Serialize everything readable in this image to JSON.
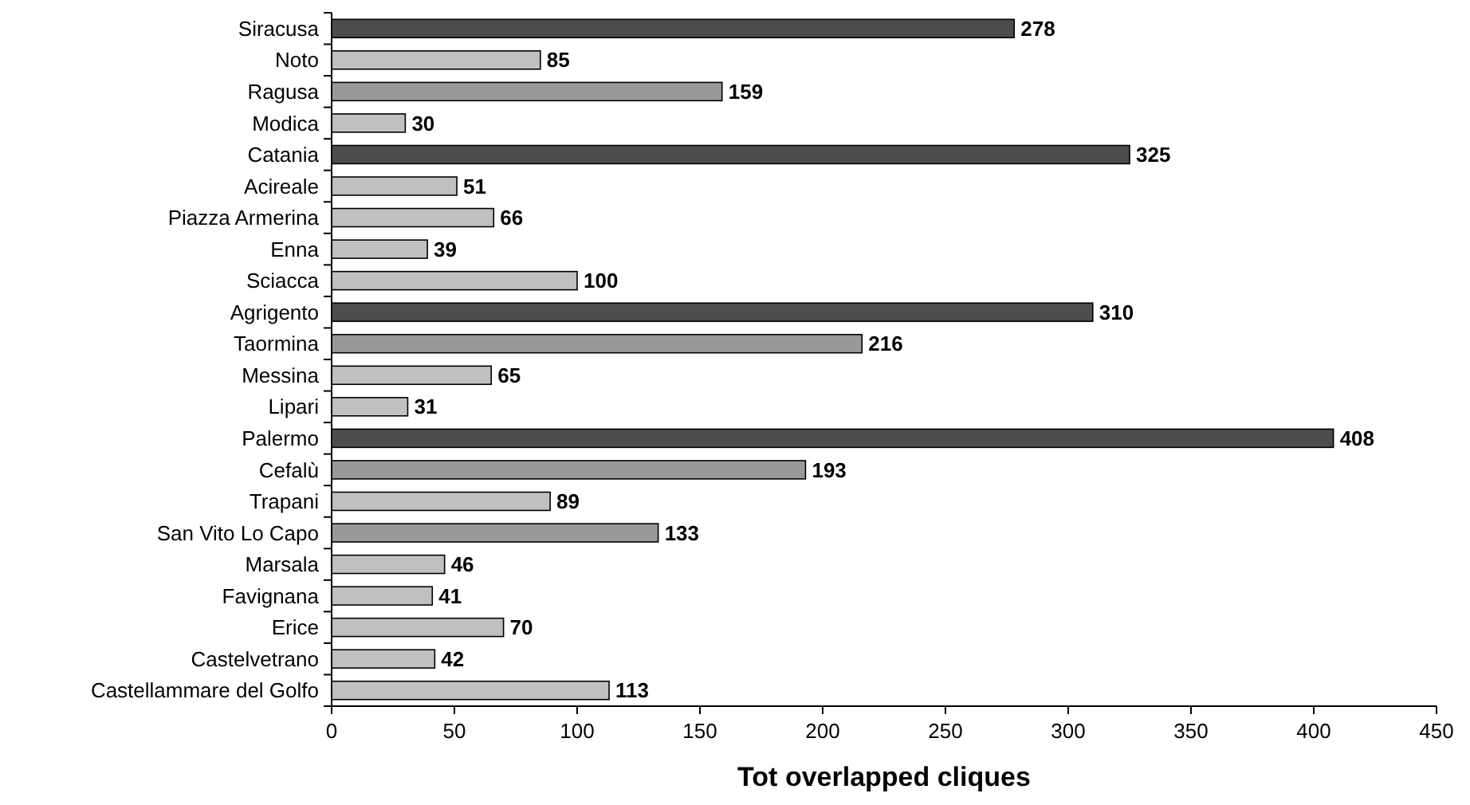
{
  "chart_data": {
    "type": "bar",
    "orientation": "horizontal",
    "xlabel": "Tot overlapped cliques",
    "categories": [
      "Siracusa",
      "Noto",
      "Ragusa",
      "Modica",
      "Catania",
      "Acireale",
      "Piazza Armerina",
      "Enna",
      "Sciacca",
      "Agrigento",
      "Taormina",
      "Messina",
      "Lipari",
      "Palermo",
      "Cefalù",
      "Trapani",
      "San Vito Lo Capo",
      "Marsala",
      "Favignana",
      "Erice",
      "Castelvetrano",
      "Castellammare del Golfo"
    ],
    "values": [
      278,
      85,
      159,
      30,
      325,
      51,
      66,
      39,
      100,
      310,
      216,
      65,
      31,
      408,
      193,
      89,
      133,
      46,
      41,
      70,
      42,
      113
    ],
    "colors": [
      "#4d4d4d",
      "#c0c0c0",
      "#999999",
      "#c0c0c0",
      "#4d4d4d",
      "#c0c0c0",
      "#c0c0c0",
      "#c0c0c0",
      "#c0c0c0",
      "#4d4d4d",
      "#999999",
      "#c0c0c0",
      "#c0c0c0",
      "#4d4d4d",
      "#999999",
      "#c0c0c0",
      "#999999",
      "#c0c0c0",
      "#c0c0c0",
      "#c0c0c0",
      "#c0c0c0",
      "#c0c0c0"
    ],
    "xlim": [
      0,
      450
    ],
    "xticks": [
      0,
      50,
      100,
      150,
      200,
      250,
      300,
      350,
      400,
      450
    ],
    "data_labels": true
  }
}
